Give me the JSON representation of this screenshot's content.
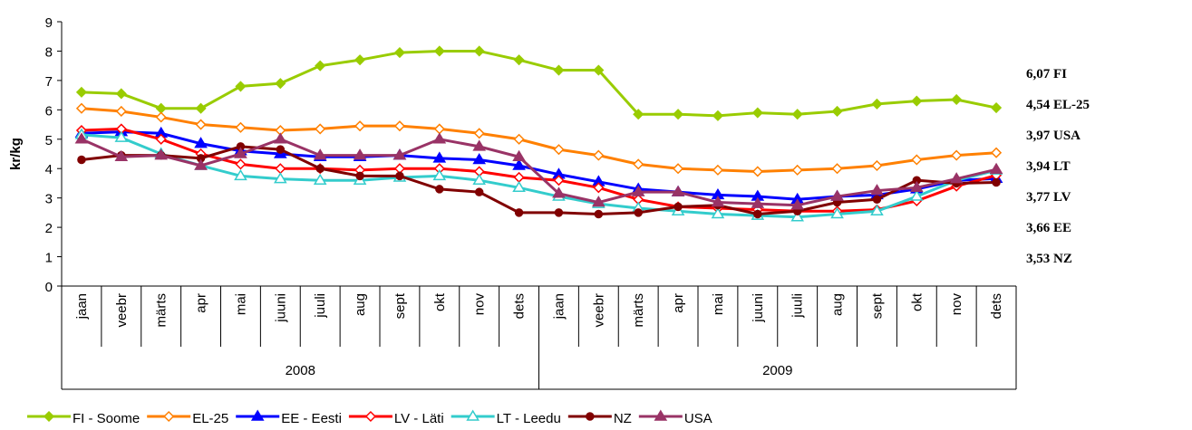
{
  "chart_data": {
    "type": "line",
    "ylabel": "kr/kg",
    "categories": [
      "jaan",
      "veebr",
      "märts",
      "apr",
      "mai",
      "juuni",
      "juuli",
      "aug",
      "sept",
      "okt",
      "nov",
      "dets",
      "jaan",
      "veebr",
      "märts",
      "apr",
      "mai",
      "juuni",
      "juuli",
      "aug",
      "sept",
      "okt",
      "nov",
      "dets"
    ],
    "groups": [
      "2008",
      "2009"
    ],
    "ylim": [
      0,
      9
    ],
    "yticks": [
      0,
      1,
      2,
      3,
      4,
      5,
      6,
      7,
      8,
      9
    ],
    "legend": "bottom",
    "series": [
      {
        "name": "FI - Soome",
        "color": "#99cc00",
        "marker": "diamond",
        "marker_fill": true,
        "values": [
          6.6,
          6.55,
          6.05,
          6.05,
          6.8,
          6.9,
          7.5,
          7.7,
          7.95,
          8.0,
          8.0,
          7.7,
          7.35,
          7.35,
          5.85,
          5.85,
          5.8,
          5.9,
          5.85,
          5.95,
          6.2,
          6.3,
          6.35,
          6.07
        ]
      },
      {
        "name": "EL-25",
        "color": "#ff8000",
        "marker": "diamond",
        "marker_fill": false,
        "values": [
          6.05,
          5.95,
          5.75,
          5.5,
          5.4,
          5.3,
          5.35,
          5.45,
          5.45,
          5.35,
          5.2,
          5.0,
          4.65,
          4.45,
          4.15,
          4.0,
          3.95,
          3.9,
          3.95,
          4.0,
          4.1,
          4.3,
          4.45,
          4.54
        ]
      },
      {
        "name": "EE - Eesti",
        "color": "#0000ff",
        "marker": "triangle",
        "marker_fill": true,
        "values": [
          5.2,
          5.25,
          5.2,
          4.85,
          4.6,
          4.5,
          4.4,
          4.4,
          4.45,
          4.35,
          4.3,
          4.1,
          3.8,
          3.55,
          3.3,
          3.2,
          3.1,
          3.05,
          2.95,
          3.05,
          3.1,
          3.3,
          3.6,
          3.66
        ]
      },
      {
        "name": "LV - Läti",
        "color": "#ff0000",
        "marker": "diamond",
        "marker_fill": false,
        "values": [
          5.3,
          5.35,
          5.0,
          4.5,
          4.15,
          4.0,
          4.0,
          3.95,
          4.0,
          4.0,
          3.9,
          3.7,
          3.6,
          3.35,
          2.95,
          2.7,
          2.65,
          2.6,
          2.55,
          2.55,
          2.6,
          2.9,
          3.4,
          3.77
        ]
      },
      {
        "name": "LT - Leedu",
        "color": "#33cccc",
        "marker": "triangle",
        "marker_fill": false,
        "values": [
          5.15,
          5.05,
          4.5,
          4.1,
          3.75,
          3.65,
          3.6,
          3.6,
          3.7,
          3.75,
          3.6,
          3.35,
          3.05,
          2.8,
          2.65,
          2.55,
          2.45,
          2.4,
          2.35,
          2.45,
          2.55,
          3.05,
          3.6,
          3.94
        ]
      },
      {
        "name": "NZ",
        "color": "#800000",
        "marker": "circle",
        "marker_fill": true,
        "values": [
          4.3,
          4.45,
          4.45,
          4.35,
          4.75,
          4.65,
          4.0,
          3.75,
          3.75,
          3.3,
          3.2,
          2.5,
          2.5,
          2.45,
          2.5,
          2.7,
          2.75,
          2.45,
          2.55,
          2.85,
          2.95,
          3.6,
          3.5,
          3.53
        ]
      },
      {
        "name": "USA",
        "color": "#993366",
        "marker": "triangle",
        "marker_fill": true,
        "values": [
          5.0,
          4.4,
          4.45,
          4.1,
          4.5,
          5.0,
          4.45,
          4.45,
          4.45,
          5.0,
          4.75,
          4.4,
          3.15,
          2.85,
          3.2,
          3.2,
          2.85,
          2.8,
          2.75,
          3.05,
          3.25,
          3.35,
          3.65,
          3.97
        ]
      }
    ],
    "annotations": [
      {
        "text": "6,07 FI",
        "color": "#99cc00"
      },
      {
        "text": "4,54 EL-25",
        "color": "#ff6600"
      },
      {
        "text": "3,97 USA",
        "color": "#993366"
      },
      {
        "text": "3,94 LT",
        "color": "#33ccff"
      },
      {
        "text": "3,77 LV",
        "color": "#ff0000"
      },
      {
        "text": "3,66 EE",
        "color": "#0000ff"
      },
      {
        "text": "3,53 NZ",
        "color": "#800000"
      }
    ]
  }
}
